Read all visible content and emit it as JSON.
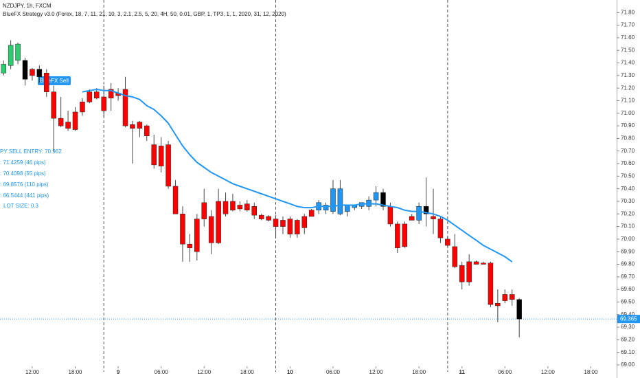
{
  "chart_data": {
    "type": "candlestick",
    "title": "NZDJPY, 1h, FXCM",
    "subtitle": "BlueFX Strategy v3.0 (Forex, 18, 7, 11, 21, 10, 3, 2.1, 2.5, 5, 20, 4H, 50, 0.01, GBP, 1, TP3, 1, 1, 2020, 31, 12, 2020)",
    "signal_label": "BlueFX Sell",
    "annotations": [
      "PY SELL ENTRY: 70.962",
      ": 71.4259 (46 pips)",
      ": 70.4098 (55 pips)",
      ": 69.8576 (110 pips)",
      ": 66.5444 (441 pips)",
      "LOT SIZE: 0.3"
    ],
    "annotation_color": "#2196f3",
    "x": [
      0,
      1,
      2,
      3,
      4,
      5,
      6,
      7,
      8,
      9,
      10,
      11,
      12,
      13,
      14,
      15,
      16,
      17,
      18,
      19,
      20,
      21,
      22,
      23,
      24,
      25,
      26,
      27,
      28,
      29,
      30,
      31,
      32,
      33,
      34,
      35,
      36,
      37,
      38,
      39,
      40,
      41,
      42,
      43,
      44,
      45,
      46,
      47,
      48,
      49,
      50,
      51,
      52,
      53,
      54,
      55,
      56,
      57,
      58,
      59,
      60,
      61,
      62,
      63,
      64,
      65,
      66,
      67,
      68,
      69,
      70,
      71,
      72
    ],
    "open": [
      71.32,
      71.38,
      71.42,
      71.42,
      71.35,
      71.35,
      71.32,
      71.17,
      70.96,
      70.93,
      71.01,
      71.09,
      71.17,
      71.17,
      71.13,
      71.19,
      71.16,
      71.19,
      70.91,
      70.93,
      70.9,
      70.75,
      70.74,
      70.75,
      70.42,
      70.2,
      69.96,
      70.16,
      70.29,
      70.18,
      70.3,
      70.3,
      70.3,
      70.27,
      70.28,
      70.26,
      70.19,
      70.18,
      70.16,
      70.15,
      70.16,
      70.15,
      70.18,
      70.23,
      70.23,
      70.23,
      70.22,
      70.2,
      70.22,
      70.25,
      70.26,
      70.26,
      70.31,
      70.37,
      70.26,
      70.12,
      70.12,
      70.18,
      70.15,
      70.26,
      70.18,
      70.16,
      70.0,
      69.94,
      69.79,
      69.82,
      69.82,
      69.81,
      69.81,
      69.49,
      69.56,
      69.56,
      69.52
    ],
    "high": [
      71.42,
      71.58,
      71.56,
      71.44,
      71.36,
      71.38,
      71.35,
      71.22,
      71.13,
      71.02,
      71.05,
      71.12,
      71.19,
      71.2,
      71.22,
      71.24,
      71.2,
      71.29,
      70.94,
      70.94,
      70.91,
      70.83,
      70.81,
      70.78,
      70.47,
      70.26,
      70.04,
      70.2,
      70.4,
      70.23,
      70.4,
      70.37,
      70.36,
      70.3,
      70.31,
      70.29,
      70.2,
      70.19,
      70.19,
      70.18,
      70.18,
      70.16,
      70.2,
      70.24,
      70.31,
      70.29,
      70.47,
      70.47,
      70.26,
      70.27,
      70.29,
      70.34,
      70.42,
      70.4,
      70.29,
      70.14,
      70.14,
      70.2,
      70.29,
      70.49,
      70.4,
      70.18,
      70.02,
      70.04,
      69.82,
      69.88,
      69.83,
      69.82,
      69.82,
      69.6,
      69.6,
      69.6,
      69.53
    ],
    "low": [
      71.3,
      71.35,
      71.39,
      71.22,
      71.26,
      71.24,
      71.13,
      70.7,
      70.89,
      70.86,
      70.86,
      70.98,
      71.08,
      71.11,
      70.97,
      71.02,
      71.1,
      70.89,
      70.6,
      70.81,
      70.78,
      70.56,
      70.53,
      70.4,
      70.2,
      69.82,
      69.82,
      69.83,
      70.1,
      69.88,
      69.96,
      70.18,
      70.22,
      70.22,
      70.22,
      70.16,
      70.15,
      70.14,
      70.01,
      70.04,
      70.01,
      70.01,
      70.04,
      70.18,
      70.2,
      70.2,
      70.2,
      70.19,
      70.18,
      70.23,
      70.24,
      70.23,
      70.26,
      70.23,
      70.1,
      69.89,
      69.93,
      70.15,
      70.12,
      70.1,
      70.04,
      69.97,
      69.94,
      69.77,
      69.6,
      69.63,
      69.8,
      69.8,
      69.46,
      69.34,
      69.49,
      69.47,
      69.22
    ],
    "close": [
      71.39,
      71.54,
      71.55,
      71.27,
      71.3,
      71.29,
      71.17,
      70.96,
      70.9,
      70.88,
      70.87,
      71.01,
      71.09,
      71.12,
      71.02,
      71.12,
      71.14,
      70.9,
      70.88,
      70.88,
      70.82,
      70.59,
      70.58,
      70.42,
      70.2,
      69.96,
      69.93,
      69.9,
      70.16,
      69.97,
      69.97,
      70.2,
      70.23,
      70.24,
      70.23,
      70.19,
      70.16,
      70.15,
      70.1,
      70.1,
      70.04,
      70.04,
      70.09,
      70.18,
      70.29,
      70.27,
      70.4,
      70.4,
      70.27,
      70.27,
      70.29,
      70.31,
      70.37,
      70.26,
      70.12,
      69.93,
      69.94,
      70.15,
      70.26,
      70.2,
      70.16,
      70.01,
      69.95,
      69.78,
      69.66,
      69.66,
      69.8,
      69.8,
      69.48,
      69.47,
      69.51,
      69.52,
      69.365
    ],
    "colors": [
      "#2ecc71",
      "#2ecc71",
      "#2ecc71",
      "#000000",
      "#ff0000",
      "#000000",
      "#ff0000",
      "#ff0000",
      "#ff0000",
      "#ff0000",
      "#ff0000",
      "#ff0000",
      "#ff0000",
      "#ff0000",
      "#ff0000",
      "#ff0000",
      "#ff0000",
      "#ff0000",
      "#ff0000",
      "#ff0000",
      "#ff0000",
      "#ff0000",
      "#ff0000",
      "#ff0000",
      "#ff0000",
      "#ff0000",
      "#ff0000",
      "#ff0000",
      "#ff0000",
      "#ff0000",
      "#ff0000",
      "#ff0000",
      "#ff0000",
      "#ff0000",
      "#ff0000",
      "#ff0000",
      "#ff0000",
      "#ff0000",
      "#ff0000",
      "#ff0000",
      "#ff0000",
      "#ff0000",
      "#ff0000",
      "#ff0000",
      "#2196f3",
      "#2196f3",
      "#2196f3",
      "#2196f3",
      "#2196f3",
      "#2196f3",
      "#2196f3",
      "#2196f3",
      "#2196f3",
      "#000000",
      "#ff0000",
      "#ff0000",
      "#ff0000",
      "#ff0000",
      "#2196f3",
      "#000000",
      "#ff0000",
      "#ff0000",
      "#ff0000",
      "#ff0000",
      "#ff0000",
      "#ff0000",
      "#ff0000",
      "#ff0000",
      "#ff0000",
      "#ff0000",
      "#ff0000",
      "#ff0000",
      "#000000"
    ],
    "ma": {
      "color": "#2196f3",
      "values": [
        null,
        null,
        null,
        null,
        null,
        null,
        null,
        null,
        null,
        null,
        null,
        71.17,
        71.18,
        71.19,
        71.18,
        71.18,
        71.16,
        71.14,
        71.13,
        71.11,
        71.06,
        71.03,
        70.98,
        70.92,
        70.83,
        70.74,
        70.67,
        70.61,
        70.57,
        70.53,
        70.5,
        70.47,
        70.44,
        70.42,
        70.4,
        70.38,
        70.36,
        70.34,
        70.32,
        70.3,
        70.28,
        70.26,
        70.25,
        70.25,
        70.26,
        70.26,
        70.26,
        70.27,
        70.27,
        70.27,
        70.28,
        70.28,
        70.28,
        70.27,
        70.26,
        70.25,
        70.23,
        70.22,
        70.22,
        70.21,
        70.2,
        70.18,
        70.15,
        70.11,
        70.07,
        70.03,
        69.99,
        69.95,
        69.92,
        69.89,
        69.86,
        69.82,
        null
      ]
    },
    "last_price": 69.365,
    "last_price_color": "#2196f3",
    "session_breaks": [
      14,
      38,
      62
    ],
    "xlim": [
      -0.5,
      85.6
    ],
    "ylim": [
      69.0,
      71.9
    ],
    "xticks": [
      {
        "value": 4,
        "label": "12:00"
      },
      {
        "value": 10,
        "label": "18:00"
      },
      9,
      {
        "value": 22,
        "label": "06:00"
      },
      {
        "value": 28,
        "label": "12:00"
      },
      {
        "value": 34,
        "label": "18:00"
      },
      10,
      {
        "value": 46,
        "label": "06:00"
      },
      {
        "value": 52,
        "label": "12:00"
      },
      {
        "value": 58,
        "label": "18:00"
      },
      11,
      {
        "value": 70,
        "label": "06:00"
      },
      {
        "value": 76,
        "label": "12:00"
      },
      {
        "value": 82,
        "label": "18:00"
      }
    ],
    "xtick_positions": [
      4,
      10,
      16,
      22,
      28,
      34,
      40,
      46,
      52,
      58,
      64,
      70,
      76,
      82
    ],
    "yticks": [
      {
        "value": 69.0,
        "label": "69.00"
      },
      {
        "value": 69.1,
        "label": "69.10"
      },
      {
        "value": 69.2,
        "label": "69.20"
      },
      {
        "value": 69.3,
        "label": "69.30"
      },
      {
        "value": 69.4,
        "label": "69.40"
      },
      {
        "value": 69.5,
        "label": "69.50"
      },
      {
        "value": 69.6,
        "label": "69.60"
      },
      {
        "value": 69.7,
        "label": "69.70"
      },
      {
        "value": 69.8,
        "label": "69.80"
      },
      {
        "value": 69.9,
        "label": "69.90"
      },
      {
        "value": 70.0,
        "label": "70.00"
      },
      {
        "value": 70.1,
        "label": "70.10"
      },
      {
        "value": 70.2,
        "label": "70.20"
      },
      {
        "value": 70.3,
        "label": "70.30"
      },
      {
        "value": 70.4,
        "label": "70.40"
      },
      {
        "value": 70.5,
        "label": "70.50"
      },
      {
        "value": 70.6,
        "label": "70.60"
      },
      {
        "value": 70.7,
        "label": "70.70"
      },
      {
        "value": 70.8,
        "label": "70.80"
      },
      {
        "value": 70.9,
        "label": "70.90"
      },
      {
        "value": 71.0,
        "label": "71.00"
      },
      {
        "value": 71.1,
        "label": "71.10"
      },
      {
        "value": 71.2,
        "label": "71.20"
      },
      {
        "value": 71.3,
        "label": "71.30"
      },
      {
        "value": 71.4,
        "label": "71.40"
      },
      {
        "value": 71.5,
        "label": "71.50"
      },
      {
        "value": 71.6,
        "label": "71.60"
      },
      {
        "value": 71.7,
        "label": "71.70"
      },
      {
        "value": 71.8,
        "label": "71.80"
      }
    ]
  }
}
